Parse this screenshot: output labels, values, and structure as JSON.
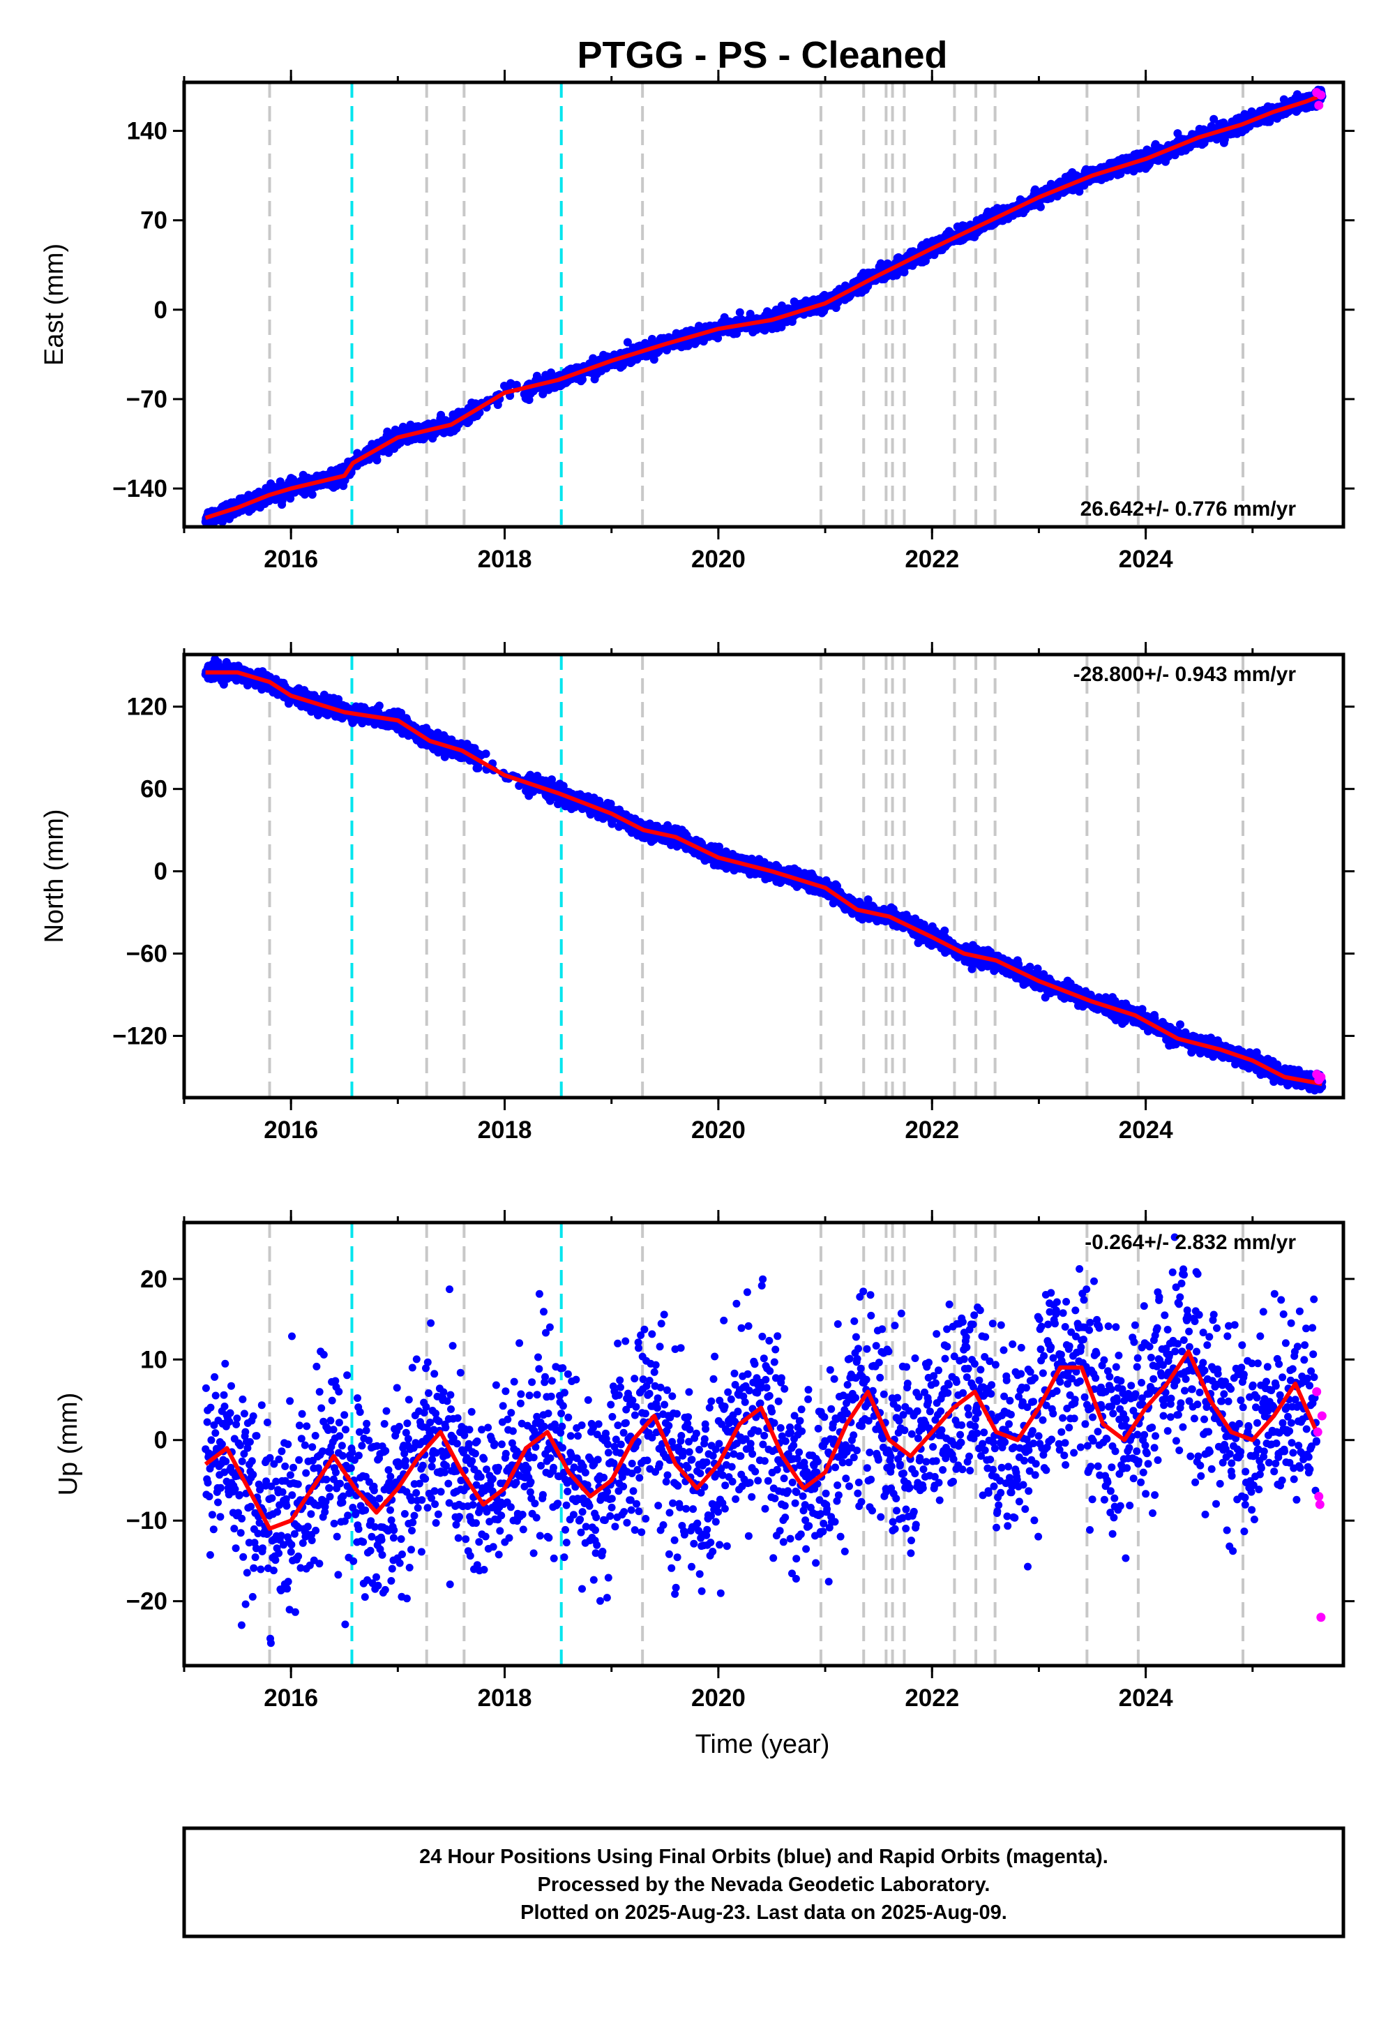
{
  "chart_data": {
    "title": "PTGG  - PS - Cleaned",
    "type": "scatter",
    "xlabel": "Time (year)",
    "xlim": [
      2015.0,
      2025.85
    ],
    "x_ticks": [
      2016,
      2018,
      2020,
      2022,
      2024
    ],
    "x_tick_labels": [
      "2016",
      "2018",
      "2020",
      "2022",
      "2024"
    ],
    "colors": {
      "final_orbits": "#0000ff",
      "rapid_orbits": "#ff00ff",
      "model": "#ff0000",
      "equipment_change": "#c8c8c8",
      "earthquake": "#00e5ee"
    },
    "vertical_lines": {
      "gray": [
        2015.8,
        2017.27,
        2017.62,
        2019.29,
        2020.96,
        2021.36,
        2021.57,
        2021.63,
        2021.74,
        2022.21,
        2022.41,
        2022.59,
        2023.45,
        2023.93,
        2024.91
      ],
      "cyan": [
        2016.57,
        2018.53
      ]
    },
    "panels": [
      {
        "component": "East",
        "ylabel": "East (mm)",
        "ylim": [
          -170,
          178
        ],
        "y_ticks": [
          -140,
          -70,
          0,
          70,
          140
        ],
        "y_tick_labels": [
          "−140",
          "−70",
          "0",
          "70",
          "140"
        ],
        "rate_label": "26.642+/- 0.776 mm/yr",
        "rate_position": "bottom-right",
        "model_curve": {
          "x": [
            2015.2,
            2015.5,
            2015.8,
            2016.0,
            2016.5,
            2016.58,
            2017.0,
            2017.5,
            2017.6,
            2018.0,
            2018.5,
            2019.0,
            2019.5,
            2020.0,
            2020.5,
            2021.0,
            2021.5,
            2022.0,
            2022.5,
            2023.0,
            2023.5,
            2024.0,
            2024.5,
            2024.9,
            2025.2,
            2025.5,
            2025.65
          ],
          "y": [
            -163,
            -155,
            -145,
            -140,
            -130,
            -120,
            -100,
            -90,
            -85,
            -65,
            -55,
            -40,
            -27,
            -15,
            -8,
            5,
            27,
            48,
            68,
            88,
            105,
            118,
            135,
            145,
            155,
            163,
            168
          ]
        },
        "scatter_noise_mm": 3,
        "rapid_points": {
          "x": [
            2025.6,
            2025.62,
            2025.64
          ],
          "y": [
            170,
            160,
            168
          ]
        }
      },
      {
        "component": "North",
        "ylabel": "North (mm)",
        "ylim": [
          -165,
          158
        ],
        "y_ticks": [
          -120,
          -60,
          0,
          60,
          120
        ],
        "y_tick_labels": [
          "−120",
          "−60",
          "0",
          "60",
          "120"
        ],
        "rate_label": "-28.800+/- 0.943 mm/yr",
        "rate_position": "top-right",
        "model_curve": {
          "x": [
            2015.2,
            2015.5,
            2015.8,
            2016.0,
            2016.5,
            2017.0,
            2017.3,
            2017.6,
            2018.0,
            2018.5,
            2019.0,
            2019.3,
            2019.6,
            2020.0,
            2020.5,
            2021.0,
            2021.3,
            2021.6,
            2022.0,
            2022.3,
            2022.6,
            2023.0,
            2023.5,
            2023.9,
            2024.3,
            2024.7,
            2025.0,
            2025.3,
            2025.65
          ],
          "y": [
            145,
            145,
            138,
            128,
            116,
            110,
            95,
            88,
            70,
            57,
            42,
            30,
            25,
            10,
            0,
            -12,
            -28,
            -33,
            -48,
            -60,
            -65,
            -80,
            -95,
            -105,
            -122,
            -130,
            -138,
            -150,
            -155
          ]
        },
        "scatter_noise_mm": 3,
        "rapid_points": {
          "x": [
            2025.6,
            2025.62,
            2025.64
          ],
          "y": [
            -148,
            -152,
            -150
          ]
        }
      },
      {
        "component": "Up",
        "ylabel": "Up (mm)",
        "ylim": [
          -28,
          27
        ],
        "y_ticks": [
          -20,
          -10,
          0,
          10,
          20
        ],
        "y_tick_labels": [
          "−20",
          "−10",
          "0",
          "10",
          "20"
        ],
        "rate_label": "-0.264+/- 2.832 mm/yr",
        "rate_position": "top-right",
        "model_curve": {
          "x": [
            2015.2,
            2015.4,
            2015.6,
            2015.8,
            2016.0,
            2016.2,
            2016.4,
            2016.6,
            2016.8,
            2017.0,
            2017.2,
            2017.4,
            2017.6,
            2017.8,
            2018.0,
            2018.2,
            2018.4,
            2018.6,
            2018.8,
            2019.0,
            2019.2,
            2019.4,
            2019.6,
            2019.8,
            2020.0,
            2020.2,
            2020.4,
            2020.6,
            2020.8,
            2021.0,
            2021.2,
            2021.4,
            2021.6,
            2021.8,
            2022.0,
            2022.2,
            2022.4,
            2022.6,
            2022.8,
            2023.0,
            2023.2,
            2023.4,
            2023.6,
            2023.8,
            2024.0,
            2024.2,
            2024.4,
            2024.6,
            2024.8,
            2025.0,
            2025.2,
            2025.4,
            2025.6
          ],
          "y": [
            -3,
            -1,
            -6,
            -11,
            -10,
            -6,
            -2,
            -6,
            -9,
            -6,
            -2,
            1,
            -4,
            -8,
            -6,
            -1,
            1,
            -4,
            -7,
            -5,
            0,
            3,
            -3,
            -6,
            -3,
            2,
            4,
            -2,
            -6,
            -4,
            2,
            6,
            0,
            -2,
            1,
            4,
            6,
            1,
            0,
            4,
            9,
            9,
            2,
            0,
            4,
            7,
            11,
            5,
            1,
            0,
            3,
            7,
            1
          ]
        },
        "scatter_noise_mm": 6,
        "rapid_points": {
          "x": [
            2025.6,
            2025.61,
            2025.62,
            2025.63,
            2025.64,
            2025.65
          ],
          "y": [
            6,
            1,
            -7,
            -8,
            -22,
            3
          ]
        }
      }
    ]
  },
  "footer": {
    "line1": "24 Hour Positions Using Final Orbits (blue) and Rapid Orbits (magenta).",
    "line2": "Processed by the Nevada Geodetic Laboratory.",
    "line3": "Plotted on 2025-Aug-23. Last data on 2025-Aug-09."
  }
}
